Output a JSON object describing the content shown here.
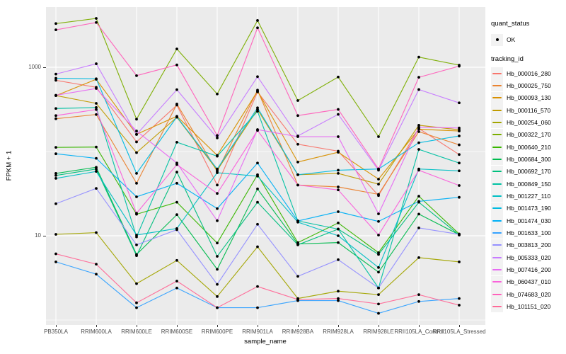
{
  "figure": {
    "y_axis_title": "FPKM + 1",
    "x_axis_title": "sample_name",
    "colors": {
      "panel_bg": "#EBEBEB",
      "grid": "#FFFFFF",
      "axis_text": "#4D4D4D",
      "tick_mark": "#333333",
      "legend_key_bg": "#F2F2F2",
      "point": "#000000"
    }
  },
  "legend": {
    "quant_status_title": "quant_status",
    "quant_status_items": [
      {
        "label": "OK",
        "marker": "black-point"
      }
    ],
    "tracking_id_title": "tracking_id"
  },
  "chart_data": {
    "type": "line",
    "title": "",
    "xlabel": "sample_name",
    "ylabel": "FPKM + 1",
    "y_scale": "log10",
    "ylim": [
      0.85,
      5200
    ],
    "grid": true,
    "legend_position": "right",
    "point_marker": "black dot (quant_status OK)",
    "y_ticks": [
      {
        "label": "1000",
        "value": 1000
      },
      {
        "label": "10",
        "value": 10
      }
    ],
    "y_minor_gridlines": [
      100,
      1
    ],
    "categories": [
      "PB350LA",
      "RRIM600LA",
      "RRIM600LE",
      "RRIM600SE",
      "RRIM600PE",
      "RRIM901LA",
      "RRIM928BA",
      "RRIM928LA",
      "RRIM928LE",
      "RRII105LA_Control",
      "RRII105LA_Stressed"
    ],
    "series": [
      {
        "name": "Hb_000016_280",
        "color": "#F8766D",
        "values": [
          700,
          578,
          130,
          355,
          40,
          510,
          122,
          101,
          30,
          188,
          92
        ]
      },
      {
        "name": "Hb_000025_750",
        "color": "#EA8331",
        "values": [
          245,
          275,
          42,
          366,
          58,
          535,
          40,
          38,
          31,
          172,
          120
        ]
      },
      {
        "name": "Hb_000093_130",
        "color": "#D89000",
        "values": [
          460,
          720,
          160,
          262,
          90,
          520,
          75,
          98,
          47,
          184,
          175
        ]
      },
      {
        "name": "Hb_000116_570",
        "color": "#C09B00",
        "values": [
          462,
          373,
          97,
          255,
          60,
          315,
          53,
          55,
          41,
          205,
          181
        ]
      },
      {
        "name": "Hb_000254_060",
        "color": "#A3A500",
        "values": [
          10.4,
          10.9,
          2.7,
          5.1,
          1.9,
          7.4,
          1.8,
          2.2,
          2.0,
          5.5,
          4.9
        ]
      },
      {
        "name": "Hb_000322_170",
        "color": "#7CAE00",
        "values": [
          3300,
          3800,
          242,
          1650,
          482,
          3590,
          403,
          766,
          150,
          1320,
          1060
        ]
      },
      {
        "name": "Hb_000640_210",
        "color": "#39B600",
        "values": [
          112,
          113,
          18,
          25,
          8.2,
          53,
          8.3,
          14.2,
          6.3,
          29.5,
          10.5
        ]
      },
      {
        "name": "Hb_000684_300",
        "color": "#00BB4E",
        "values": [
          55,
          65,
          6.0,
          17.8,
          4.0,
          36,
          8.0,
          8.3,
          3.7,
          18.1,
          10.3
        ]
      },
      {
        "name": "Hb_000692_170",
        "color": "#00BF7D",
        "values": [
          52,
          62,
          5.8,
          57,
          5.7,
          25,
          7.8,
          12.0,
          6.0,
          25,
          10.2
        ]
      },
      {
        "name": "Hb_000849_150",
        "color": "#00C1A3",
        "values": [
          324,
          333,
          9.7,
          129,
          88,
          300,
          15,
          12,
          2.4,
          106,
          73
        ]
      },
      {
        "name": "Hb_001227_110",
        "color": "#00BFC4",
        "values": [
          48,
          58,
          10.2,
          12.2,
          56,
          51,
          14.5,
          10,
          4.2,
          62,
          59
        ]
      },
      {
        "name": "Hb_001473_190",
        "color": "#00BAE0",
        "values": [
          740,
          730,
          55,
          258,
          62,
          330,
          53,
          60,
          62,
          127,
          153
        ]
      },
      {
        "name": "Hb_001474_030",
        "color": "#00B0F6",
        "values": [
          94,
          83,
          29,
          42,
          21,
          73,
          15,
          19.3,
          14.8,
          25.6,
          28.6
        ]
      },
      {
        "name": "Hb_001633_100",
        "color": "#35A2FF",
        "values": [
          4.9,
          3.5,
          1.4,
          2.4,
          1.4,
          1.4,
          1.7,
          1.7,
          1.2,
          1.66,
          1.8
        ]
      },
      {
        "name": "Hb_003813_200",
        "color": "#9590FF",
        "values": [
          24,
          36.5,
          7.8,
          11.8,
          2.65,
          13.7,
          3.3,
          5.2,
          2.4,
          12.4,
          10.4
        ]
      },
      {
        "name": "Hb_005333_020",
        "color": "#C77CFF",
        "values": [
          830,
          1100,
          159,
          542,
          145,
          773,
          153,
          276,
          60,
          544,
          378
        ]
      },
      {
        "name": "Hb_007416_200",
        "color": "#E76BF3",
        "values": [
          465,
          560,
          175,
          73,
          15.1,
          182,
          150,
          150,
          18.2,
          195,
          190
        ]
      },
      {
        "name": "Hb_060437_010",
        "color": "#FA62DB",
        "values": [
          267,
          315,
          18.5,
          70,
          31.8,
          178,
          40,
          35,
          10.2,
          60,
          39.5
        ]
      },
      {
        "name": "Hb_074683_020",
        "color": "#FF62BC",
        "values": [
          2780,
          3400,
          795,
          1066,
          155,
          2940,
          267,
          316,
          62,
          760,
          1030
        ]
      },
      {
        "name": "Hb_101151_020",
        "color": "#FF6A98",
        "values": [
          6.1,
          4.6,
          1.6,
          2.9,
          1.4,
          2.5,
          1.75,
          1.8,
          1.55,
          2.0,
          1.5
        ]
      }
    ]
  }
}
